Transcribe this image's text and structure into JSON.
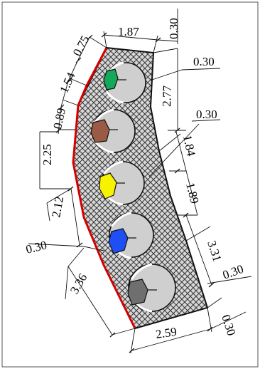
{
  "dimensions": {
    "top_width": "1.87",
    "top_right_offset": "0.30",
    "top_left_a": "0.75",
    "left_a": "1.54",
    "left_b": "0.89",
    "left_c": "2.25",
    "left_d": "2.12",
    "left_lower_offset": "0.30",
    "left_bottom": "3.36",
    "right_lead_1": "0.30",
    "right_a": "2.77",
    "right_lead_2": "0.30",
    "right_b": "1.84",
    "right_c": "1.89",
    "right_d": "3.31",
    "right_lower_offset": "0.30",
    "bottom_width": "2.59",
    "bottom_right_offset": "0.30"
  },
  "conduits": [
    {
      "name": "green",
      "color": "#13a85a"
    },
    {
      "name": "brown",
      "color": "#9a5a45"
    },
    {
      "name": "yellow",
      "color": "#f7f200"
    },
    {
      "name": "blue",
      "color": "#1f4ff2"
    },
    {
      "name": "gray",
      "color": "#6f6f6f"
    }
  ],
  "colors": {
    "hatch": "#3a3a3a",
    "fill": "#d8d8d8",
    "edge": "#d40000",
    "duct": "#cfcfcf"
  }
}
